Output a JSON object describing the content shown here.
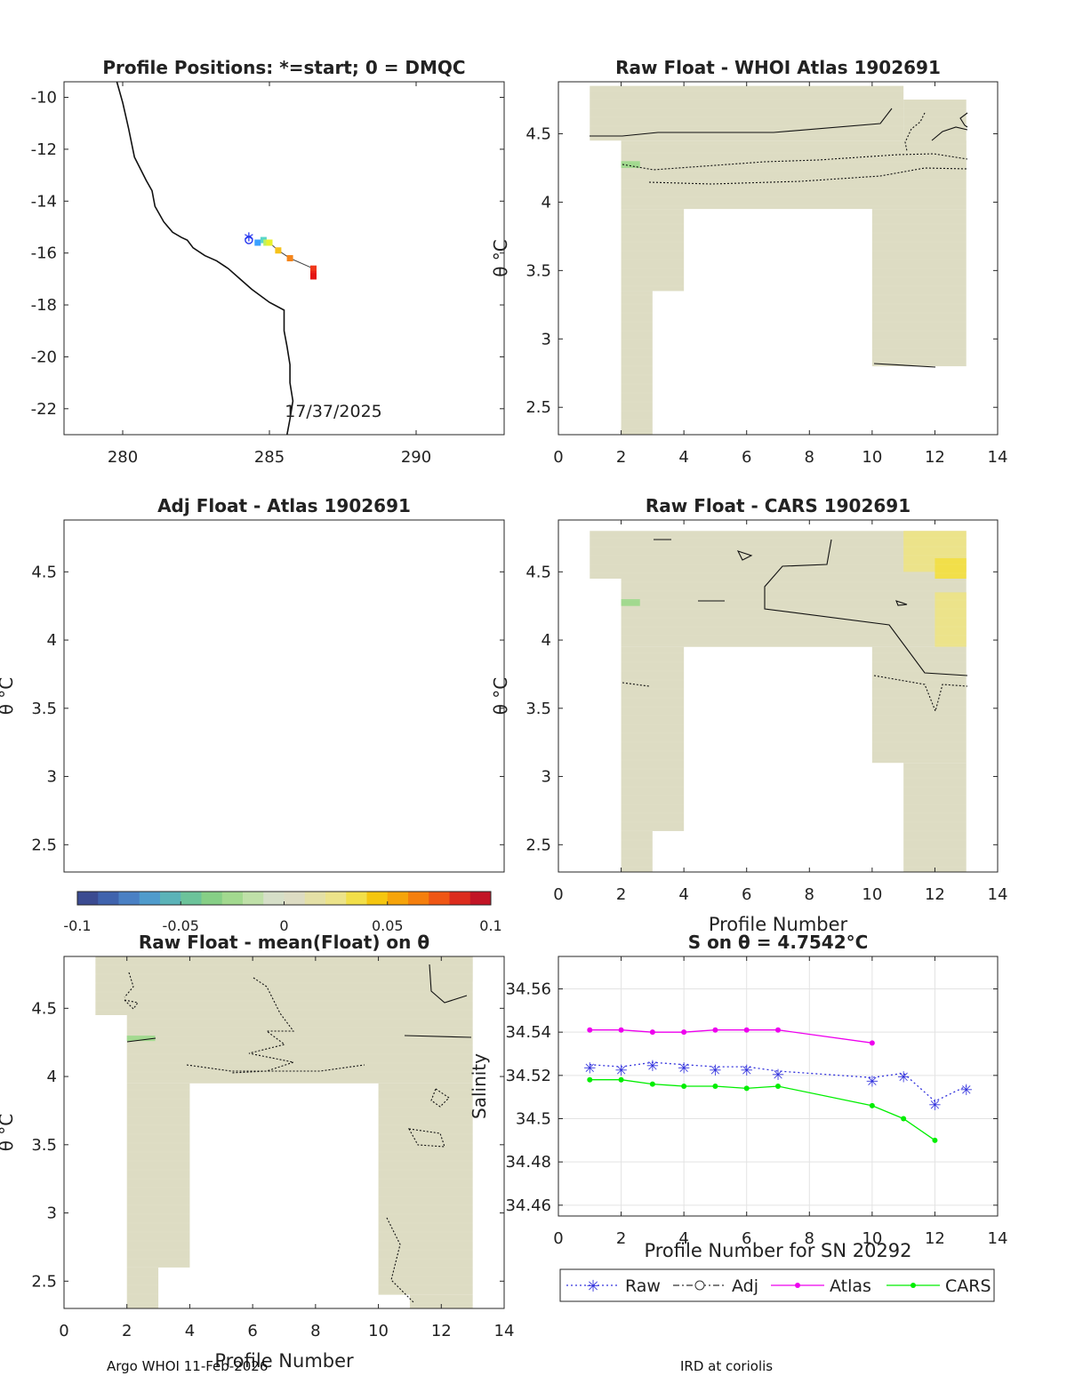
{
  "footer": {
    "left": "Argo WHOI 11-Feb-2026",
    "right": "IRD at coriolis"
  },
  "colorbar": {
    "ticks": [
      "-0.1",
      "-0.05",
      "0",
      "0.05",
      "0.1"
    ],
    "range": [
      -0.1,
      0.1
    ],
    "colors": [
      "#3b4b91",
      "#3f63ad",
      "#4a80c4",
      "#4f9bcc",
      "#5bb3b8",
      "#6cc39a",
      "#86cf86",
      "#a2d98f",
      "#bfe0a8",
      "#d6dfc8",
      "#dddcc3",
      "#e4e0a6",
      "#ece38a",
      "#f2df49",
      "#f5c60f",
      "#f6a40a",
      "#f57f0d",
      "#ef5614",
      "#dc2c1d",
      "#c21425"
    ]
  },
  "chart_data": [
    {
      "id": "positions",
      "type": "scatter",
      "title": "Profile Positions: *=start; 0 = DMQC",
      "xlim": [
        278,
        293
      ],
      "ylim": [
        -23,
        -9.4
      ],
      "xticks": [
        "280",
        "285",
        "290"
      ],
      "yticks": [
        "-10",
        "-12",
        "-14",
        "-16",
        "-18",
        "-20",
        "-22"
      ],
      "annotation": "17/37/2025",
      "start_marker": {
        "x": 284.3,
        "y": -15.5
      },
      "profiles": [
        {
          "x": 284.6,
          "y": -15.6,
          "color": "#3aa0ff"
        },
        {
          "x": 284.8,
          "y": -15.5,
          "color": "#59d6c8"
        },
        {
          "x": 284.9,
          "y": -15.6,
          "color": "#bff060"
        },
        {
          "x": 285.0,
          "y": -15.6,
          "color": "#e8f22c"
        },
        {
          "x": 285.3,
          "y": -15.9,
          "color": "#f6c21a"
        },
        {
          "x": 285.7,
          "y": -16.2,
          "color": "#f5851a"
        },
        {
          "x": 286.5,
          "y": -16.6,
          "color": "#f0381b"
        },
        {
          "x": 286.5,
          "y": -16.8,
          "color": "#ea2219"
        },
        {
          "x": 286.5,
          "y": -16.9,
          "color": "#e41414"
        }
      ],
      "coastline": [
        [
          279.8,
          -9.4
        ],
        [
          280.0,
          -10.2
        ],
        [
          280.2,
          -11.2
        ],
        [
          280.4,
          -12.3
        ],
        [
          280.8,
          -13.2
        ],
        [
          281.0,
          -13.6
        ],
        [
          281.1,
          -14.2
        ],
        [
          281.4,
          -14.8
        ],
        [
          281.7,
          -15.2
        ],
        [
          282.0,
          -15.4
        ],
        [
          282.2,
          -15.5
        ],
        [
          282.4,
          -15.8
        ],
        [
          282.8,
          -16.1
        ],
        [
          283.2,
          -16.3
        ],
        [
          283.6,
          -16.6
        ],
        [
          284.0,
          -17.0
        ],
        [
          284.4,
          -17.4
        ],
        [
          285.0,
          -17.9
        ],
        [
          285.5,
          -18.2
        ],
        [
          285.5,
          -19.0
        ],
        [
          285.6,
          -19.6
        ],
        [
          285.7,
          -20.3
        ],
        [
          285.7,
          -21.0
        ],
        [
          285.8,
          -21.7
        ],
        [
          285.7,
          -22.4
        ],
        [
          285.6,
          -23.0
        ]
      ]
    },
    {
      "id": "whoi",
      "type": "heatmap",
      "title": "Raw Float - WHOI Atlas  1902691",
      "ylabel": "θ °C",
      "xlim": [
        0,
        14
      ],
      "ylim": [
        2.3,
        4.88
      ],
      "xticks": [
        "0",
        "2",
        "4",
        "6",
        "8",
        "10",
        "12",
        "14"
      ],
      "yticks": [
        "2.5",
        "3",
        "3.5",
        "4",
        "4.5"
      ],
      "cells": [
        {
          "x0": 1,
          "x1": 11,
          "y0": 4.45,
          "y1": 4.85,
          "v": 0.009
        },
        {
          "x0": 11,
          "x1": 13,
          "y0": 4.25,
          "y1": 4.75,
          "v": 0.0
        },
        {
          "x0": 2,
          "x1": 13,
          "y0": 3.95,
          "y1": 4.45,
          "v": 0.0
        },
        {
          "x0": 2,
          "x1": 4,
          "y0": 3.35,
          "y1": 3.95,
          "v": 0.002
        },
        {
          "x0": 2,
          "x1": 3,
          "y0": 2.3,
          "y1": 3.35,
          "v": 0.005
        },
        {
          "x0": 10,
          "x1": 13,
          "y0": 2.8,
          "y1": 3.95,
          "v": 0.004
        },
        {
          "x0": 2,
          "x1": 2.6,
          "y0": 4.25,
          "y1": 4.3,
          "v": -0.03
        }
      ]
    },
    {
      "id": "adj",
      "type": "heatmap",
      "title": "Adj Float - Atlas  1902691",
      "ylabel": "θ °C",
      "xlim": [
        0,
        14
      ],
      "ylim": [
        2.3,
        4.88
      ],
      "xticks": [],
      "yticks": [
        "2.5",
        "3",
        "3.5",
        "4",
        "4.5"
      ],
      "cells": []
    },
    {
      "id": "cars",
      "type": "heatmap",
      "title": "Raw Float - CARS  1902691",
      "xlabel": "Profile Number",
      "ylabel": "θ °C",
      "xlim": [
        0,
        14
      ],
      "ylim": [
        2.3,
        4.88
      ],
      "xticks": [
        "0",
        "2",
        "4",
        "6",
        "8",
        "10",
        "12",
        "14"
      ],
      "yticks": [
        "2.5",
        "3",
        "3.5",
        "4",
        "4.5"
      ],
      "cells": [
        {
          "x0": 1,
          "x1": 13,
          "y0": 4.45,
          "y1": 4.8,
          "v": 0.004
        },
        {
          "x0": 2,
          "x1": 13,
          "y0": 3.95,
          "y1": 4.45,
          "v": 0.003
        },
        {
          "x0": 11,
          "x1": 13,
          "y0": 4.5,
          "y1": 4.8,
          "v": 0.02
        },
        {
          "x0": 12,
          "x1": 13,
          "y0": 4.45,
          "y1": 4.6,
          "v": 0.035
        },
        {
          "x0": 12,
          "x1": 13,
          "y0": 3.95,
          "y1": 4.35,
          "v": 0.025
        },
        {
          "x0": 2,
          "x1": 4,
          "y0": 2.6,
          "y1": 3.95,
          "v": 0.001
        },
        {
          "x0": 2,
          "x1": 3,
          "y0": 2.3,
          "y1": 2.6,
          "v": 0.003
        },
        {
          "x0": 10,
          "x1": 13,
          "y0": 3.1,
          "y1": 3.95,
          "v": 0.004
        },
        {
          "x0": 11,
          "x1": 13,
          "y0": 2.3,
          "y1": 3.1,
          "v": 0.006
        },
        {
          "x0": 2,
          "x1": 2.6,
          "y0": 4.25,
          "y1": 4.3,
          "v": -0.03
        }
      ]
    },
    {
      "id": "mean",
      "type": "heatmap",
      "title": "Raw Float - mean(Float) on θ",
      "xlabel": "Profile Number",
      "ylabel": "θ °C",
      "xlim": [
        0,
        14
      ],
      "ylim": [
        2.3,
        4.88
      ],
      "xticks": [
        "0",
        "2",
        "4",
        "6",
        "8",
        "10",
        "12",
        "14"
      ],
      "yticks": [
        "2.5",
        "3",
        "3.5",
        "4",
        "4.5"
      ],
      "cells": [
        {
          "x0": 1,
          "x1": 13,
          "y0": 4.45,
          "y1": 4.9,
          "v": 0.0
        },
        {
          "x0": 2,
          "x1": 13,
          "y0": 3.95,
          "y1": 4.45,
          "v": 0.0
        },
        {
          "x0": 12,
          "x1": 13,
          "y0": 4.7,
          "y1": 4.9,
          "v": 0.01
        },
        {
          "x0": 2,
          "x1": 4,
          "y0": 2.6,
          "y1": 3.95,
          "v": 0.0
        },
        {
          "x0": 2,
          "x1": 3,
          "y0": 2.3,
          "y1": 2.6,
          "v": 0.0
        },
        {
          "x0": 10,
          "x1": 13,
          "y0": 2.4,
          "y1": 3.95,
          "v": 0.0
        },
        {
          "x0": 11,
          "x1": 13,
          "y0": 2.3,
          "y1": 2.4,
          "v": 0.0
        },
        {
          "x0": 2,
          "x1": 2.9,
          "y0": 4.26,
          "y1": 4.3,
          "v": -0.03
        }
      ]
    },
    {
      "id": "salinity",
      "type": "line",
      "title": "S on θ = 4.7542°C",
      "xlabel": "Profile Number for SN 20292",
      "ylabel": "Salinity",
      "xlim": [
        0,
        14
      ],
      "ylim": [
        34.455,
        34.575
      ],
      "xticks": [
        "0",
        "2",
        "4",
        "6",
        "8",
        "10",
        "12",
        "14"
      ],
      "yticks": [
        "34.46",
        "34.48",
        "34.5",
        "34.52",
        "34.54",
        "34.56"
      ],
      "grid": true,
      "legend_position": "bottom",
      "series": [
        {
          "name": "Raw",
          "color": "#3333dd",
          "x": [
            1,
            2,
            3,
            4,
            5,
            6,
            7,
            10,
            11,
            12,
            13
          ],
          "y": [
            34.525,
            34.524,
            34.526,
            34.525,
            34.524,
            34.524,
            34.522,
            34.519,
            34.521,
            34.508,
            34.515
          ]
        },
        {
          "name": "Adj",
          "color": "#333333",
          "x": [],
          "y": []
        },
        {
          "name": "Atlas",
          "color": "#ee00ee",
          "x": [
            1,
            2,
            3,
            4,
            5,
            6,
            7,
            10
          ],
          "y": [
            34.541,
            34.541,
            34.54,
            34.54,
            34.541,
            34.541,
            34.541,
            34.535
          ]
        },
        {
          "name": "CARS",
          "color": "#00ee00",
          "x": [
            1,
            2,
            3,
            4,
            5,
            6,
            7,
            10,
            11,
            12
          ],
          "y": [
            34.518,
            34.518,
            34.516,
            34.515,
            34.515,
            34.514,
            34.515,
            34.506,
            34.5,
            34.49
          ]
        }
      ]
    }
  ]
}
